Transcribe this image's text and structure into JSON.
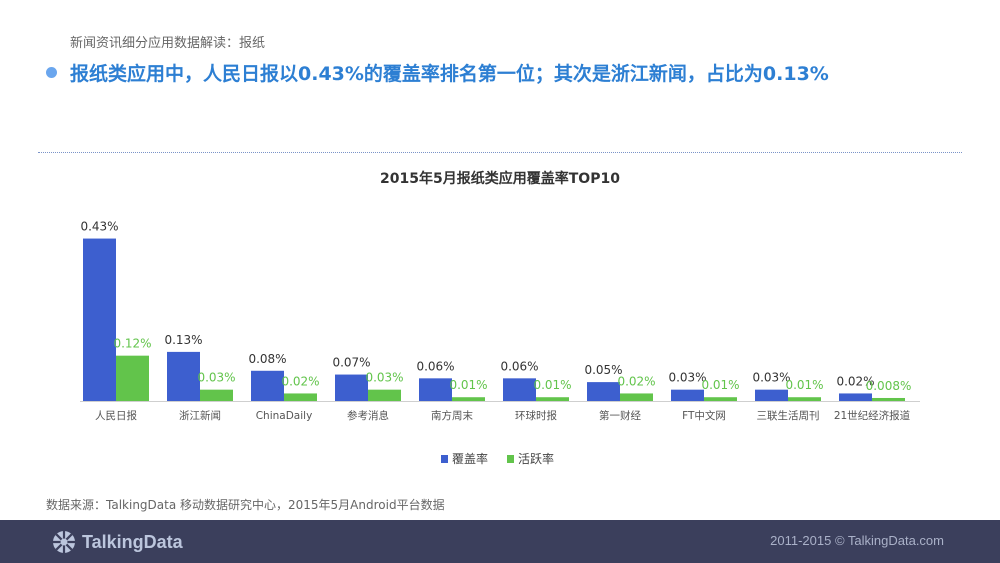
{
  "header": {
    "breadcrumb": "新闻资讯细分应用数据解读：报纸",
    "headline": "报纸类应用中，人民日报以0.43%的覆盖率排名第一位；其次是浙江新闻，占比为0.13%"
  },
  "chart_data": {
    "type": "bar",
    "title": "2015年5月报纸类应用覆盖率TOP10",
    "categories": [
      "人民日报",
      "浙江新闻",
      "ChinaDaily",
      "参考消息",
      "南方周末",
      "环球时报",
      "第一财经",
      "FT中文网",
      "三联生活周刊",
      "21世纪经济报道"
    ],
    "series": [
      {
        "name": "覆盖率",
        "color": "#3d5fcf",
        "values": [
          0.43,
          0.13,
          0.08,
          0.07,
          0.06,
          0.06,
          0.05,
          0.03,
          0.03,
          0.02
        ],
        "labels": [
          "0.43%",
          "0.13%",
          "0.08%",
          "0.07%",
          "0.06%",
          "0.06%",
          "0.05%",
          "0.03%",
          "0.03%",
          "0.02%"
        ]
      },
      {
        "name": "活跃率",
        "color": "#62c44b",
        "values": [
          0.12,
          0.03,
          0.02,
          0.03,
          0.01,
          0.01,
          0.02,
          0.01,
          0.01,
          0.008
        ],
        "labels": [
          "0.12%",
          "0.03%",
          "0.02%",
          "0.03%",
          "0.01%",
          "0.01%",
          "0.02%",
          "0.01%",
          "0.01%",
          "0.008%"
        ]
      }
    ],
    "ylim": [
      0,
      0.45
    ],
    "legend": "bottom",
    "grid": false
  },
  "source": "数据来源：TalkingData 移动数据研究中心，2015年5月Android平台数据",
  "footer": {
    "logo_text": "TalkingData",
    "logo_icon": "talkingdata-logo-icon",
    "copyright": "2011-2015 © TalkingData.com"
  }
}
